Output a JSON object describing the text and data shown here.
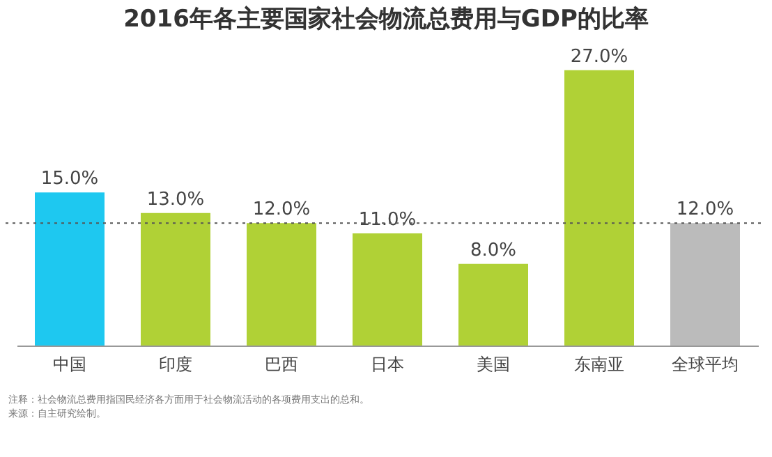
{
  "chart_data": {
    "type": "bar",
    "title": "2016年各主要国家社会物流总费用与GDP的比率",
    "categories": [
      "中国",
      "印度",
      "巴西",
      "日本",
      "美国",
      "东南亚",
      "全球平均"
    ],
    "values": [
      15,
      13,
      12,
      11,
      8,
      27,
      12
    ],
    "colors": [
      "#1ec8f0",
      "#b0d136",
      "#b0d136",
      "#b0d136",
      "#b0d136",
      "#b0d136",
      "#bbbbbb"
    ],
    "value_labels": [
      "15.0%",
      "13.0%",
      "12.0%",
      "11.0%",
      "8.0%",
      "27.0%",
      "12.0%"
    ],
    "ref_lines": [
      {
        "axis": "y",
        "value": 12,
        "color": "#555555",
        "line_style": "dotted"
      }
    ],
    "annotations": [
      "注释：社会物流总费用指国民经济各方面用于社会物流活动的各项费用支出的总和。",
      "来源：自主研究绘制。"
    ]
  }
}
